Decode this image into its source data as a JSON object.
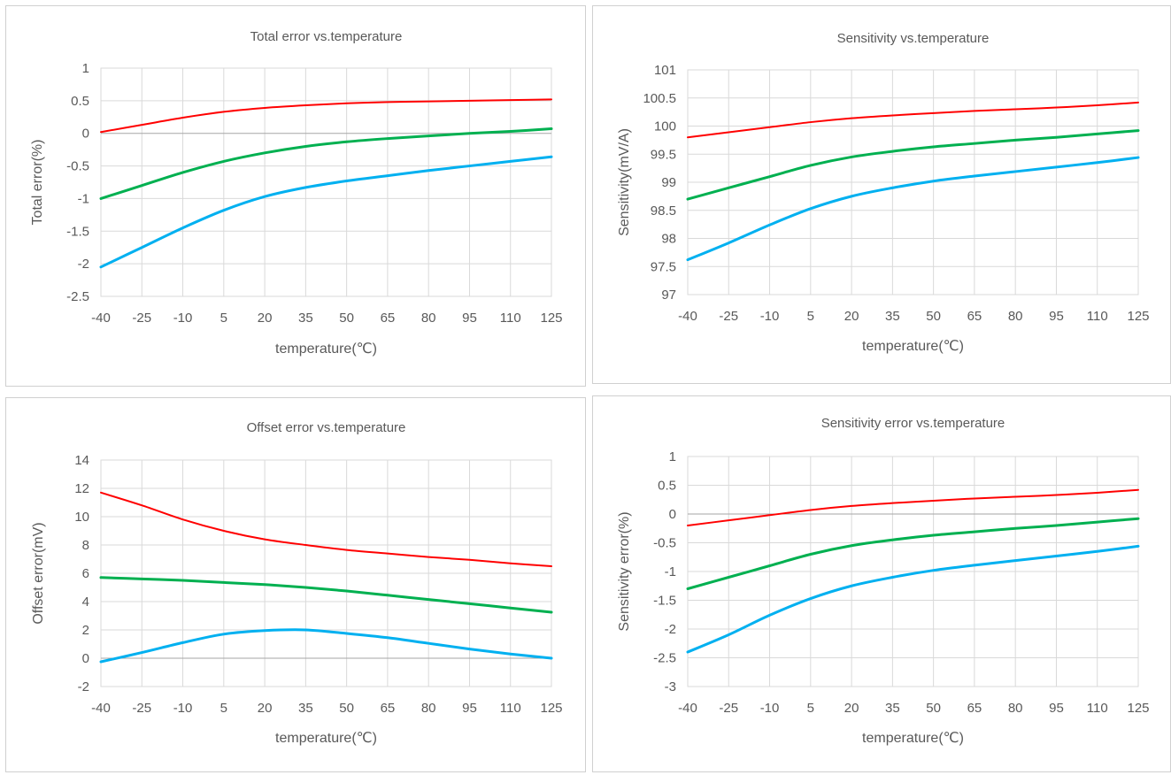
{
  "chart_data": [
    {
      "type": "line",
      "title": "Total error vs.temperature",
      "xlabel": "temperature(℃)",
      "ylabel": "Total error(%)",
      "x": [
        -40,
        -25,
        -10,
        5,
        20,
        35,
        50,
        65,
        80,
        95,
        110,
        125
      ],
      "x_ticks": [
        "-40",
        "-25",
        "-10",
        "5",
        "20",
        "35",
        "50",
        "65",
        "80",
        "95",
        "110",
        "125"
      ],
      "ylim": [
        -2.5,
        1
      ],
      "y_ticks": [
        "1",
        "0.5",
        "0",
        "-0.5",
        "-1",
        "-1.5",
        "-2",
        "-2.5"
      ],
      "grid": true,
      "series": [
        {
          "color": "#ff0000",
          "values": [
            0.02,
            0.13,
            0.24,
            0.33,
            0.39,
            0.43,
            0.46,
            0.48,
            0.49,
            0.5,
            0.51,
            0.52
          ]
        },
        {
          "color": "#00b050",
          "values": [
            -1.0,
            -0.8,
            -0.6,
            -0.43,
            -0.3,
            -0.2,
            -0.13,
            -0.08,
            -0.04,
            0.0,
            0.03,
            0.07
          ]
        },
        {
          "color": "#00b0f0",
          "values": [
            -2.05,
            -1.75,
            -1.45,
            -1.18,
            -0.97,
            -0.83,
            -0.73,
            -0.65,
            -0.57,
            -0.5,
            -0.43,
            -0.36
          ]
        }
      ]
    },
    {
      "type": "line",
      "title": "Sensitivity vs.temperature",
      "xlabel": "temperature(℃)",
      "ylabel": "Sensitivity(mV/A)",
      "x": [
        -40,
        -25,
        -10,
        5,
        20,
        35,
        50,
        65,
        80,
        95,
        110,
        125
      ],
      "x_ticks": [
        "-40",
        "-25",
        "-10",
        "5",
        "20",
        "35",
        "50",
        "65",
        "80",
        "95",
        "110",
        "125"
      ],
      "ylim": [
        97,
        101
      ],
      "y_ticks": [
        "101",
        "100.5",
        "100",
        "99.5",
        "99",
        "98.5",
        "98",
        "97.5",
        "97"
      ],
      "grid": true,
      "series": [
        {
          "color": "#ff0000",
          "values": [
            99.8,
            99.89,
            99.98,
            100.07,
            100.14,
            100.19,
            100.23,
            100.27,
            100.3,
            100.33,
            100.37,
            100.42
          ]
        },
        {
          "color": "#00b050",
          "values": [
            98.7,
            98.9,
            99.1,
            99.3,
            99.45,
            99.55,
            99.63,
            99.69,
            99.75,
            99.8,
            99.86,
            99.92
          ]
        },
        {
          "color": "#00b0f0",
          "values": [
            97.62,
            97.92,
            98.24,
            98.53,
            98.75,
            98.9,
            99.02,
            99.11,
            99.19,
            99.27,
            99.35,
            99.44
          ]
        }
      ]
    },
    {
      "type": "line",
      "title": "Offset error vs.temperature",
      "xlabel": "temperature(℃)",
      "ylabel": "Offset error(mV)",
      "x": [
        -40,
        -25,
        -10,
        5,
        20,
        35,
        50,
        65,
        80,
        95,
        110,
        125
      ],
      "x_ticks": [
        "-40",
        "-25",
        "-10",
        "5",
        "20",
        "35",
        "50",
        "65",
        "80",
        "95",
        "110",
        "125"
      ],
      "ylim": [
        -2,
        14
      ],
      "y_ticks": [
        "14",
        "12",
        "10",
        "8",
        "6",
        "4",
        "2",
        "0",
        "-2"
      ],
      "grid": true,
      "series": [
        {
          "color": "#ff0000",
          "values": [
            11.7,
            10.8,
            9.8,
            9.0,
            8.4,
            8.0,
            7.65,
            7.4,
            7.15,
            6.95,
            6.7,
            6.5
          ]
        },
        {
          "color": "#00b050",
          "values": [
            5.7,
            5.6,
            5.5,
            5.35,
            5.2,
            5.0,
            4.75,
            4.45,
            4.15,
            3.85,
            3.55,
            3.25
          ]
        },
        {
          "color": "#00b0f0",
          "values": [
            -0.25,
            0.4,
            1.1,
            1.7,
            1.95,
            2.0,
            1.75,
            1.45,
            1.05,
            0.65,
            0.3,
            0.0
          ]
        }
      ]
    },
    {
      "type": "line",
      "title": "Sensitivity error vs.temperature",
      "xlabel": "temperature(℃)",
      "ylabel": "Sensitivity error(%)",
      "x": [
        -40,
        -25,
        -10,
        5,
        20,
        35,
        50,
        65,
        80,
        95,
        110,
        125
      ],
      "x_ticks": [
        "-40",
        "-25",
        "-10",
        "5",
        "20",
        "35",
        "50",
        "65",
        "80",
        "95",
        "110",
        "125"
      ],
      "ylim": [
        -3,
        1
      ],
      "y_ticks": [
        "1",
        "0.5",
        "0",
        "-0.5",
        "-1",
        "-1.5",
        "-2",
        "-2.5",
        "-3"
      ],
      "grid": true,
      "series": [
        {
          "color": "#ff0000",
          "values": [
            -0.2,
            -0.11,
            -0.02,
            0.07,
            0.14,
            0.19,
            0.23,
            0.27,
            0.3,
            0.33,
            0.37,
            0.42
          ]
        },
        {
          "color": "#00b050",
          "values": [
            -1.3,
            -1.1,
            -0.9,
            -0.7,
            -0.55,
            -0.45,
            -0.37,
            -0.31,
            -0.25,
            -0.2,
            -0.14,
            -0.08
          ]
        },
        {
          "color": "#00b0f0",
          "values": [
            -2.4,
            -2.1,
            -1.76,
            -1.47,
            -1.25,
            -1.1,
            -0.98,
            -0.89,
            -0.81,
            -0.73,
            -0.65,
            -0.56
          ]
        }
      ]
    }
  ],
  "colors": {
    "grid": "#d9d9d9",
    "zero_line": "#a6a6a6",
    "text": "#595959"
  }
}
